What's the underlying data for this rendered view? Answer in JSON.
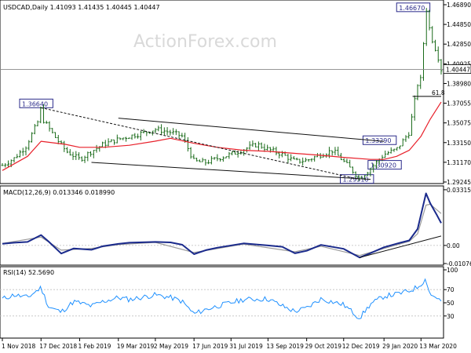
{
  "header": {
    "symbol_line": "USDCAD,Daily  1.41093 1.41435 1.40445 1.40447",
    "watermark": "ActionForex.com"
  },
  "colors": {
    "price": "#1a6b1a",
    "moving_average": "#e8202a",
    "macd_line": "#1a2a8c",
    "macd_signal": "#9a9a9a",
    "rsi": "#1e90ff",
    "trendline": "#111111",
    "annotation_box": "#2a2a8a"
  },
  "chart_data": [
    {
      "type": "line",
      "panel": "price",
      "series": [
        {
          "kind": "ohlc-bars",
          "x": [
            "2018-11-01",
            "2018-11-15",
            "2018-11-29",
            "2018-12-13",
            "2018-12-17",
            "2018-12-19",
            "2019-01-02",
            "2019-01-16",
            "2019-02-01",
            "2019-02-15",
            "2019-03-01",
            "2019-03-19",
            "2019-04-01",
            "2019-04-16",
            "2019-05-02",
            "2019-05-20",
            "2019-06-03",
            "2019-06-17",
            "2019-07-01",
            "2019-07-15",
            "2019-07-31",
            "2019-08-15",
            "2019-08-31",
            "2019-09-13",
            "2019-09-30",
            "2019-10-15",
            "2019-10-29",
            "2019-11-15",
            "2019-11-29",
            "2019-12-12",
            "2019-12-31",
            "2020-01-13",
            "2020-01-29",
            "2020-02-13",
            "2020-02-28",
            "2020-03-09",
            "2020-03-13",
            "2020-03-19",
            "2020-03-24",
            "2020-03-31",
            "2020-04-02",
            "2020-04-06"
          ],
          "values": [
            1.309,
            1.316,
            1.328,
            1.352,
            1.3664,
            1.355,
            1.338,
            1.323,
            1.315,
            1.323,
            1.33,
            1.335,
            1.338,
            1.341,
            1.345,
            1.342,
            1.338,
            1.313,
            1.312,
            1.316,
            1.32,
            1.325,
            1.33,
            1.325,
            1.32,
            1.313,
            1.314,
            1.32,
            1.324,
            1.313,
            1.296,
            1.306,
            1.32,
            1.325,
            1.342,
            1.39,
            1.395,
            1.4667,
            1.44,
            1.423,
            1.418,
            1.4045
          ]
        },
        {
          "name": "",
          "kind": "moving-average",
          "x": [
            "2018-11-01",
            "2018-12-01",
            "2018-12-17",
            "2019-01-15",
            "2019-02-01",
            "2019-03-01",
            "2019-04-01",
            "2019-05-01",
            "2019-05-20",
            "2019-06-17",
            "2019-07-15",
            "2019-08-15",
            "2019-09-13",
            "2019-10-15",
            "2019-11-15",
            "2019-12-12",
            "2020-01-13",
            "2020-01-29",
            "2020-02-13",
            "2020-02-28",
            "2020-03-13",
            "2020-03-24",
            "2020-04-06"
          ],
          "values": [
            1.304,
            1.318,
            1.333,
            1.33,
            1.327,
            1.327,
            1.329,
            1.333,
            1.336,
            1.331,
            1.327,
            1.324,
            1.323,
            1.321,
            1.319,
            1.317,
            1.315,
            1.315,
            1.318,
            1.324,
            1.338,
            1.355,
            1.372
          ]
        }
      ],
      "annotations": [
        "1.36640",
        "1.46670",
        "1.33290",
        "1.30920",
        "1.29510",
        "61.8"
      ],
      "current_price_label": "1.40447",
      "ylim": [
        1.2925,
        1.4689
      ],
      "ytick_labels": [
        "1.46890",
        "1.44850",
        "1.42850",
        "1.40925",
        "1.38980",
        "1.37055",
        "1.35075",
        "1.33150",
        "1.31170",
        "1.29245"
      ],
      "xtick_labels": [
        "1 Nov 2018",
        "17 Dec 2018",
        "1 Feb 2019",
        "19 Mar 2019",
        "2 May 2019",
        "17 Jun 2019",
        "31 Jul 2019",
        "13 Sep 2019",
        "29 Oct 2019",
        "12 Dec 2019",
        "29 Jan 2020",
        "13 Mar 2020"
      ],
      "grid": false,
      "trendlines": [
        {
          "from": [
            "2018-12-17",
            1.3664
          ],
          "to": [
            "2019-12-31",
            1.2951
          ],
          "style": "dashed"
        },
        {
          "from": [
            "2019-03-19",
            1.356
          ],
          "to": [
            "2020-01-29",
            1.3329
          ],
          "style": "solid"
        },
        {
          "from": [
            "2019-02-15",
            1.312
          ],
          "to": [
            "2020-01-13",
            1.2951
          ],
          "style": "solid"
        }
      ],
      "horizontal_lines": [
        {
          "y": 1.3777,
          "from": "2020-03-03",
          "to": "2020-04-06",
          "label": "61.8"
        }
      ]
    },
    {
      "type": "line",
      "panel": "macd",
      "title": "MACD(12,26,9) 0.013346 0.018990",
      "series": [
        {
          "name": "",
          "kind": "macd",
          "x": [
            "2018-11-01",
            "2018-11-15",
            "2018-12-01",
            "2018-12-17",
            "2018-12-26",
            "2019-01-10",
            "2019-01-25",
            "2019-02-15",
            "2019-03-01",
            "2019-03-19",
            "2019-04-01",
            "2019-05-02",
            "2019-05-20",
            "2019-06-03",
            "2019-06-17",
            "2019-07-01",
            "2019-07-15",
            "2019-08-15",
            "2019-09-13",
            "2019-09-30",
            "2019-10-15",
            "2019-10-29",
            "2019-11-15",
            "2019-12-12",
            "2019-12-31",
            "2020-01-13",
            "2020-01-29",
            "2020-02-13",
            "2020-02-28",
            "2020-03-09",
            "2020-03-19",
            "2020-03-24",
            "2020-04-01",
            "2020-04-06"
          ],
          "values": [
            0.001,
            0.0016,
            0.0021,
            0.0062,
            0.0023,
            -0.0048,
            -0.0018,
            -0.0026,
            -0.0004,
            0.0009,
            0.0016,
            0.0021,
            0.0018,
            0.0004,
            -0.0052,
            -0.0028,
            -0.0013,
            0.0012,
            0.0,
            -0.0008,
            -0.0047,
            -0.0032,
            0.0003,
            -0.002,
            -0.0072,
            -0.0046,
            -0.0011,
            0.001,
            0.003,
            0.0098,
            0.031,
            0.025,
            0.018,
            0.0133
          ]
        },
        {
          "name": "",
          "kind": "signal",
          "x": [
            "2018-11-01",
            "2018-12-17",
            "2019-01-10",
            "2019-02-15",
            "2019-03-19",
            "2019-05-02",
            "2019-06-17",
            "2019-08-15",
            "2019-10-15",
            "2019-11-15",
            "2019-12-31",
            "2020-01-29",
            "2020-02-28",
            "2020-03-09",
            "2020-03-19",
            "2020-03-24",
            "2020-04-06"
          ],
          "values": [
            0.0012,
            0.005,
            -0.0028,
            -0.0018,
            0.0005,
            0.0018,
            -0.0042,
            0.0008,
            -0.0038,
            -0.0005,
            -0.006,
            -0.0018,
            0.0024,
            0.007,
            0.024,
            0.0245,
            0.019
          ]
        }
      ],
      "ylim": [
        -0.0108,
        0.0331
      ],
      "ytick_labels": [
        "0.033151",
        "0.00",
        "-0.010769"
      ],
      "zero_line": 0.0,
      "trendlines": [
        {
          "from": [
            "2019-12-31",
            -0.0072
          ],
          "to": [
            "2020-04-06",
            0.0056
          ],
          "style": "solid"
        }
      ]
    },
    {
      "type": "line",
      "panel": "rsi",
      "title": "RSI(14) 52.5690",
      "series": [
        {
          "name": "",
          "kind": "rsi",
          "x": [
            "2018-11-01",
            "2018-11-15",
            "2018-12-01",
            "2018-12-17",
            "2018-12-26",
            "2019-01-10",
            "2019-01-25",
            "2019-02-15",
            "2019-03-01",
            "2019-03-19",
            "2019-04-01",
            "2019-05-02",
            "2019-05-20",
            "2019-06-03",
            "2019-06-17",
            "2019-07-01",
            "2019-07-15",
            "2019-08-15",
            "2019-09-13",
            "2019-09-30",
            "2019-10-15",
            "2019-10-29",
            "2019-11-15",
            "2019-12-12",
            "2019-12-31",
            "2020-01-13",
            "2020-01-29",
            "2020-02-13",
            "2020-02-28",
            "2020-03-09",
            "2020-03-19",
            "2020-03-24",
            "2020-04-01",
            "2020-04-06"
          ],
          "values": [
            56,
            62,
            58,
            73,
            44,
            36,
            52,
            45,
            52,
            58,
            55,
            62,
            58,
            52,
            33,
            40,
            45,
            55,
            56,
            45,
            37,
            42,
            56,
            47,
            27,
            48,
            60,
            63,
            68,
            74,
            86,
            62,
            58,
            52.569
          ]
        }
      ],
      "ylim": [
        0,
        100
      ],
      "ytick_labels": [
        "100",
        "70",
        "50",
        "30"
      ],
      "reference_lines": [
        70,
        30
      ]
    }
  ]
}
